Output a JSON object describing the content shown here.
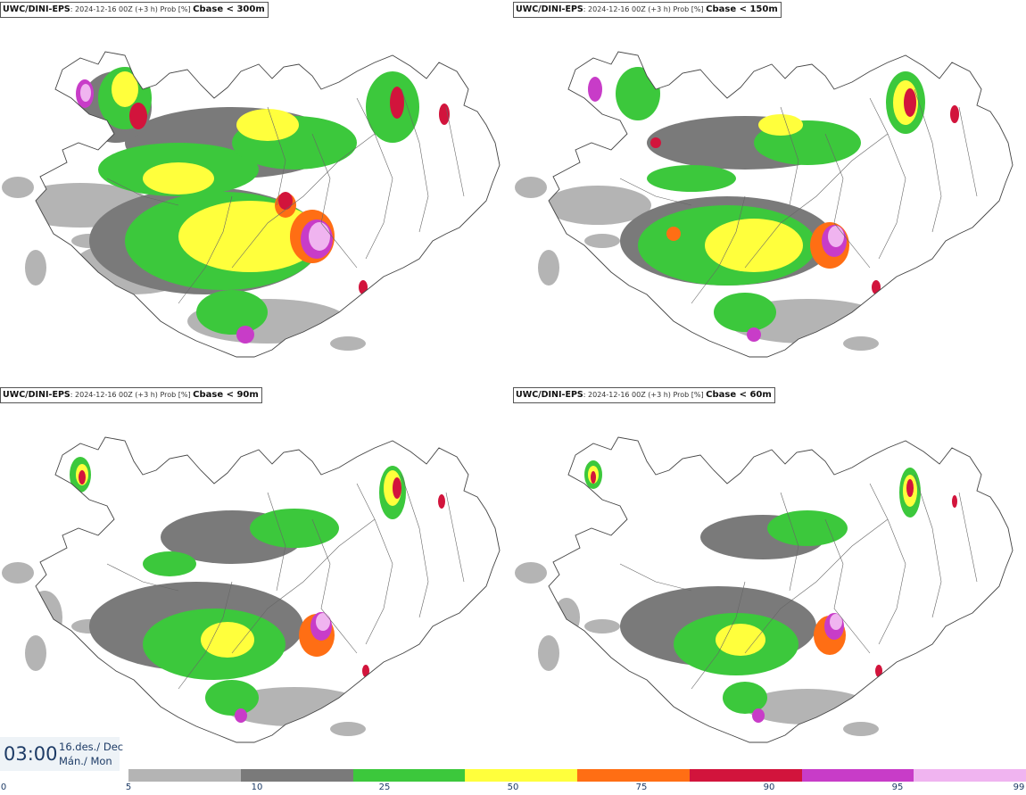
{
  "panels": [
    {
      "model": "UWC/DINI-EPS",
      "run": ": 2024-12-16 00Z (+3 h) Prob [%]",
      "threshold": "Cbase < 300m"
    },
    {
      "model": "UWC/DINI-EPS",
      "run": ": 2024-12-16 00Z (+3 h) Prob [%]",
      "threshold": "Cbase < 150m"
    },
    {
      "model": "UWC/DINI-EPS",
      "run": ": 2024-12-16 00Z (+3 h) Prob [%]",
      "threshold": "Cbase < 90m"
    },
    {
      "model": "UWC/DINI-EPS",
      "run": ": 2024-12-16 00Z (+3 h) Prob [%]",
      "threshold": "Cbase < 60m"
    }
  ],
  "time": "03:00",
  "date_line1": "16.des./ Dec",
  "date_line2": "Mán./ Mon",
  "colorbar": {
    "ticks": [
      "0",
      "5",
      "10",
      "25",
      "50",
      "75",
      "90",
      "95",
      "99"
    ],
    "colors": [
      "#b4b4b4",
      "#7a7a7a",
      "#3cc83c",
      "#ffff3c",
      "#ff6e14",
      "#d2143c",
      "#c83cc8",
      "#f0b4f0"
    ]
  }
}
